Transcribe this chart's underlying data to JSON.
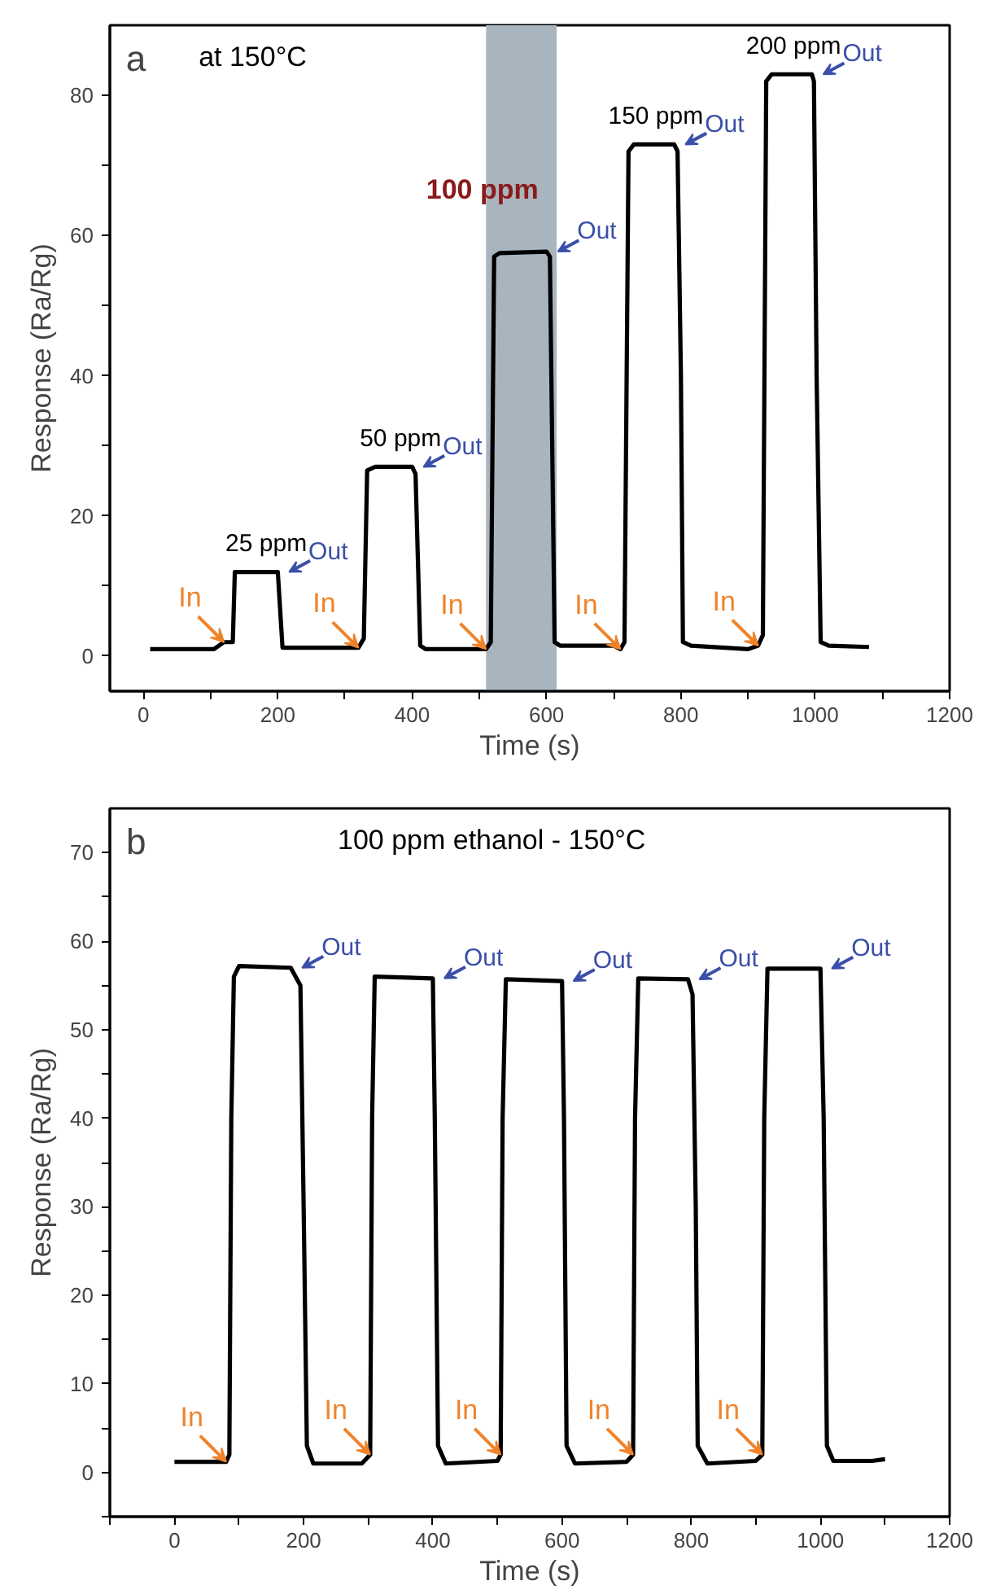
{
  "chart_data": [
    {
      "type": "line",
      "title": "at 150°C",
      "xlabel": "Time (s)",
      "ylabel": "Response (Ra/Rg)",
      "xlim": [
        -50,
        1200
      ],
      "ylim": [
        -5,
        90
      ],
      "xticks": [
        0,
        {
          "value": 100,
          "label": null
        },
        200,
        {
          "value": 300,
          "label": null
        },
        400,
        {
          "value": 500,
          "label": null
        },
        600,
        {
          "value": 700,
          "label": null
        },
        800,
        {
          "value": 900,
          "label": null
        },
        1000,
        {
          "value": 1100,
          "label": null
        },
        1200
      ],
      "yticks": [
        0,
        {
          "value": 10,
          "label": null
        },
        20,
        {
          "value": 30,
          "label": null
        },
        40,
        {
          "value": 50,
          "label": null
        },
        60,
        {
          "value": 70,
          "label": null
        },
        80
      ],
      "grid": false,
      "marker": "none",
      "line_style": "solid",
      "series": [
        {
          "color": "#000000",
          "x": [
            10,
            105,
            120,
            133,
            136,
            200,
            207,
            320,
            328,
            333,
            345,
            400,
            405,
            412,
            420,
            510,
            517,
            522,
            530,
            600,
            605,
            612,
            620,
            700,
            710,
            716,
            722,
            730,
            790,
            795,
            800,
            803,
            815,
            900,
            915,
            922,
            927,
            935,
            995,
            998,
            1002,
            1008,
            1020,
            1080
          ],
          "values": [
            1,
            1,
            2,
            2,
            12,
            12,
            1.2,
            1.2,
            2.5,
            26.5,
            27,
            27,
            26,
            1.5,
            1,
            1,
            2,
            57,
            57.5,
            57.7,
            57,
            2,
            1.5,
            1.5,
            1,
            2,
            72,
            73,
            73,
            72,
            40,
            2,
            1.5,
            1,
            1.5,
            3,
            82,
            83,
            83,
            82,
            40,
            2,
            1.5,
            1.3
          ]
        }
      ],
      "bands": [
        {
          "axis": "x",
          "from": 510,
          "to": 615,
          "color": "#a9b5be"
        }
      ],
      "annotations": [
        "a",
        "25 ppm",
        "50 ppm",
        "100 ppm",
        "150 ppm",
        "200 ppm",
        {
          "text": "Out",
          "x": 200,
          "y": 12
        },
        {
          "text": "Out",
          "x": 400,
          "y": 27
        },
        {
          "text": "Out",
          "x": 600,
          "y": 57.7
        },
        {
          "text": "Out",
          "x": 790,
          "y": 73
        },
        {
          "text": "Out",
          "x": 995,
          "y": 83
        },
        {
          "text": "In",
          "x": 120,
          "y": 2
        },
        {
          "text": "In",
          "x": 320,
          "y": 1.2
        },
        {
          "text": "In",
          "x": 510,
          "y": 1
        },
        {
          "text": "In",
          "x": 710,
          "y": 1
        },
        {
          "text": "In",
          "x": 915,
          "y": 1.5
        }
      ]
    },
    {
      "type": "line",
      "title": "100 ppm ethanol - 150°C",
      "xlabel": "Time (s)",
      "ylabel": "Response (Ra/Rg)",
      "xlim": [
        -100,
        1200
      ],
      "ylim": [
        -5,
        75
      ],
      "xticks": [
        {
          "value": -100,
          "label": null
        },
        0,
        {
          "value": 100,
          "label": null
        },
        200,
        {
          "value": 300,
          "label": null
        },
        400,
        {
          "value": 500,
          "label": null
        },
        600,
        {
          "value": 700,
          "label": null
        },
        800,
        {
          "value": 900,
          "label": null
        },
        1000,
        {
          "value": 1100,
          "label": null
        },
        1200
      ],
      "yticks": [
        {
          "value": -5,
          "label": null
        },
        0,
        {
          "value": 5,
          "label": null
        },
        10,
        {
          "value": 15,
          "label": null
        },
        20,
        {
          "value": 25,
          "label": null
        },
        30,
        {
          "value": 35,
          "label": null
        },
        40,
        {
          "value": 45,
          "label": null
        },
        50,
        {
          "value": 55,
          "label": null
        },
        60,
        {
          "value": 65,
          "label": null
        },
        70
      ],
      "grid": false,
      "marker": "none",
      "line_style": "solid",
      "series": [
        {
          "color": "#000000",
          "x": [
            0,
            80,
            85,
            88,
            92,
            100,
            180,
            195,
            200,
            205,
            215,
            290,
            303,
            306,
            310,
            400,
            403,
            408,
            420,
            500,
            505,
            508,
            513,
            600,
            603,
            607,
            620,
            700,
            710,
            713,
            718,
            795,
            802,
            807,
            810,
            825,
            900,
            910,
            913,
            918,
            1000,
            1005,
            1010,
            1020,
            1080,
            1100
          ],
          "values": [
            1.2,
            1.2,
            2,
            40,
            56,
            57.2,
            57,
            55,
            30,
            3,
            1,
            1,
            2,
            40,
            56,
            55.8,
            40,
            3,
            1,
            1.3,
            2,
            40,
            55.7,
            55.5,
            40,
            3,
            1,
            1.2,
            2,
            40,
            55.8,
            55.7,
            54,
            30,
            3,
            1,
            1.3,
            2,
            40,
            56.9,
            56.9,
            40,
            3,
            1.3,
            1.3,
            1.5
          ]
        }
      ],
      "annotations": [
        "b",
        {
          "text": "Out",
          "x": 180,
          "y": 57
        },
        {
          "text": "Out",
          "x": 400,
          "y": 55.8
        },
        {
          "text": "Out",
          "x": 600,
          "y": 55.5
        },
        {
          "text": "Out",
          "x": 795,
          "y": 55.7
        },
        {
          "text": "Out",
          "x": 1000,
          "y": 56.9
        },
        {
          "text": "In",
          "x": 80,
          "y": 1.2
        },
        {
          "text": "In",
          "x": 303,
          "y": 2
        },
        {
          "text": "In",
          "x": 505,
          "y": 2
        },
        {
          "text": "In",
          "x": 710,
          "y": 2
        },
        {
          "text": "In",
          "x": 910,
          "y": 2
        }
      ]
    }
  ]
}
